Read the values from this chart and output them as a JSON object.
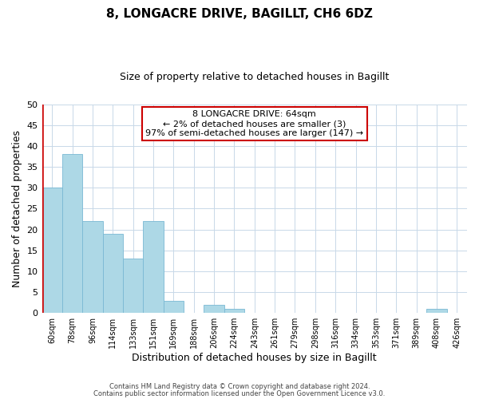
{
  "title": "8, LONGACRE DRIVE, BAGILLT, CH6 6DZ",
  "subtitle": "Size of property relative to detached houses in Bagillt",
  "xlabel": "Distribution of detached houses by size in Bagillt",
  "ylabel": "Number of detached properties",
  "bin_labels": [
    "60sqm",
    "78sqm",
    "96sqm",
    "114sqm",
    "133sqm",
    "151sqm",
    "169sqm",
    "188sqm",
    "206sqm",
    "224sqm",
    "243sqm",
    "261sqm",
    "279sqm",
    "298sqm",
    "316sqm",
    "334sqm",
    "353sqm",
    "371sqm",
    "389sqm",
    "408sqm",
    "426sqm"
  ],
  "bar_values": [
    30,
    38,
    22,
    19,
    13,
    22,
    3,
    0,
    2,
    1,
    0,
    0,
    0,
    0,
    0,
    0,
    0,
    0,
    0,
    1,
    0
  ],
  "bar_color": "#add8e6",
  "bar_edge_color": "#7ab8d4",
  "highlight_line_color": "#cc0000",
  "ylim": [
    0,
    50
  ],
  "yticks": [
    0,
    5,
    10,
    15,
    20,
    25,
    30,
    35,
    40,
    45,
    50
  ],
  "annotation_title": "8 LONGACRE DRIVE: 64sqm",
  "annotation_line1": "← 2% of detached houses are smaller (3)",
  "annotation_line2": "97% of semi-detached houses are larger (147) →",
  "annotation_box_color": "#ffffff",
  "annotation_box_edge": "#cc0000",
  "footer1": "Contains HM Land Registry data © Crown copyright and database right 2024.",
  "footer2": "Contains public sector information licensed under the Open Government Licence v3.0.",
  "bg_color": "#ffffff",
  "grid_color": "#c8d8e8"
}
